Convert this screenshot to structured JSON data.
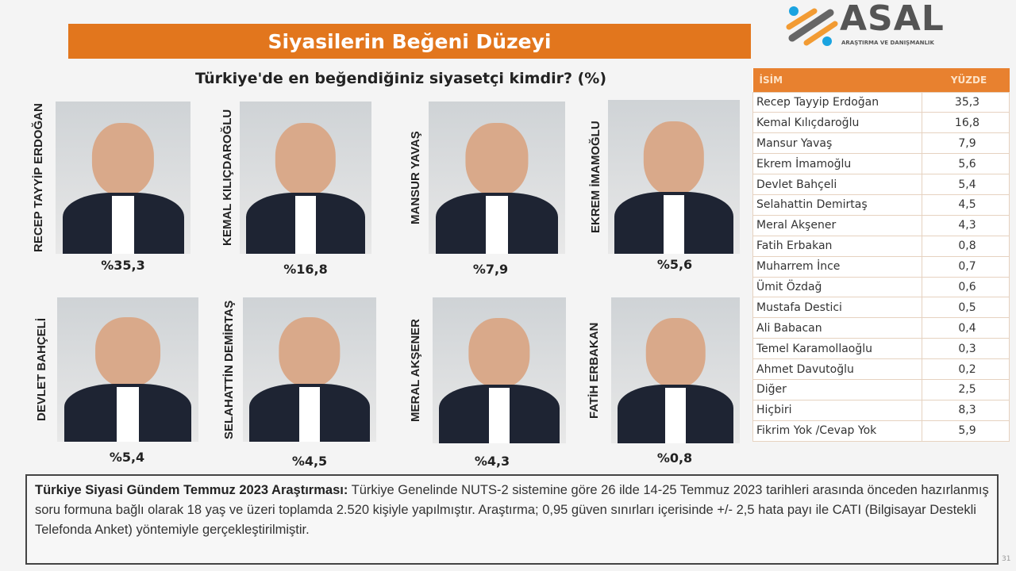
{
  "title": "Siyasilerin Beğeni Düzeyi",
  "question": "Türkiye'de en beğendiğiniz siyasetçi kimdir? (%)",
  "logo": {
    "name": "ASAL",
    "subtitle": "ARAŞTIRMA VE DANIŞMANLIK"
  },
  "colors": {
    "accent": "#e2761d"
  },
  "cards": [
    {
      "name": "RECEP TAYYİP ERDOĞAN",
      "pct": "%35,3"
    },
    {
      "name": "KEMAL KILIÇDAROĞLU",
      "pct": "%16,8"
    },
    {
      "name": "MANSUR YAVAŞ",
      "pct": "%7,9"
    },
    {
      "name": "EKREM İMAMOĞLU",
      "pct": "%5,6"
    },
    {
      "name": "DEVLET BAHÇELİ",
      "pct": "%5,4"
    },
    {
      "name": "SELAHATTİN DEMİRTAŞ",
      "pct": "%4,5"
    },
    {
      "name": "MERAL AKŞENER",
      "pct": "%4,3"
    },
    {
      "name": "FATİH ERBAKAN",
      "pct": "%0,8"
    }
  ],
  "chart_data": {
    "type": "table",
    "columns": [
      "İSİM",
      "YÜZDE"
    ],
    "rows": [
      [
        "Recep Tayyip Erdoğan",
        "35,3"
      ],
      [
        "Kemal Kılıçdaroğlu",
        "16,8"
      ],
      [
        "Mansur Yavaş",
        "7,9"
      ],
      [
        "Ekrem İmamoğlu",
        "5,6"
      ],
      [
        "Devlet Bahçeli",
        "5,4"
      ],
      [
        "Selahattin Demirtaş",
        "4,5"
      ],
      [
        "Meral Akşener",
        "4,3"
      ],
      [
        "Fatih Erbakan",
        "0,8"
      ],
      [
        "Muharrem İnce",
        "0,7"
      ],
      [
        "Ümit Özdağ",
        "0,6"
      ],
      [
        "Mustafa Destici",
        "0,5"
      ],
      [
        "Ali Babacan",
        "0,4"
      ],
      [
        "Temel Karamollaoğlu",
        "0,3"
      ],
      [
        "Ahmet Davutoğlu",
        "0,2"
      ],
      [
        "Diğer",
        "2,5"
      ],
      [
        "Hiçbiri",
        "8,3"
      ],
      [
        "Fikrim Yok /Cevap Yok",
        "5,9"
      ]
    ]
  },
  "footer": {
    "bold": "Türkiye Siyasi Gündem Temmuz 2023 Araştırması:",
    "text": " Türkiye Genelinde NUTS-2 sistemine göre 26 ilde 14-25 Temmuz 2023 tarihleri arasında önceden hazırlanmış soru formuna bağlı olarak 18 yaş ve üzeri toplamda 2.520 kişiyle yapılmıştır. Araştırma; 0,95 güven sınırları içerisinde +/- 2,5 hata payı ile CATI (Bilgisayar Destekli Telefonda Anket) yöntemiyle gerçekleştirilmiştir.",
    "page": "31"
  }
}
